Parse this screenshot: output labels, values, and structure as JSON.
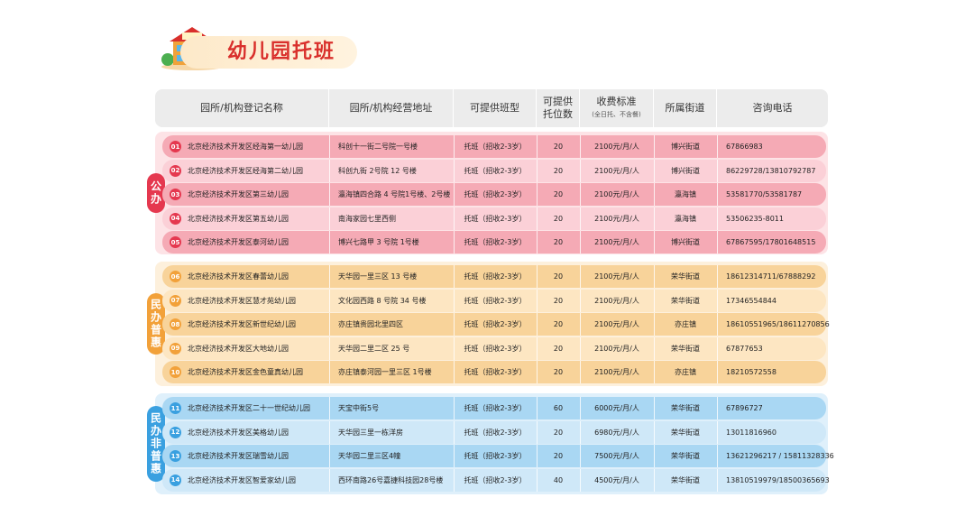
{
  "header": {
    "title": "幼儿园托班"
  },
  "table": {
    "columns": [
      "园所/机构登记名称",
      "园所/机构经营地址",
      "可提供班型",
      "可提供托位数",
      "收费标准",
      "所属街道",
      "咨询电话"
    ],
    "fee_note": "(全日托、不含餐)",
    "groups": [
      {
        "label": "公办",
        "rows": [
          [
            "01",
            "北京经济技术开发区经海第一幼儿园",
            "科创十一街二号院一号楼",
            "托班（招收2-3岁）",
            20,
            "2100元/月/人",
            "博兴街道",
            "67866983"
          ],
          [
            "02",
            "北京经济技术开发区经海第二幼儿园",
            "科创九街 2号院 12 号楼",
            "托班（招收2-3岁）",
            20,
            "2100元/月/人",
            "博兴街道",
            "86229728/13810792787"
          ],
          [
            "03",
            "北京经济技术开发区第三幼儿园",
            "瀛海镇四合路 4 号院1号楼、2号楼",
            "托班（招收2-3岁）",
            20,
            "2100元/月/人",
            "瀛海镇",
            "53581770/53581787"
          ],
          [
            "04",
            "北京经济技术开发区第五幼儿园",
            "南海家园七里西侧",
            "托班（招收2-3岁）",
            20,
            "2100元/月/人",
            "瀛海镇",
            "53506235-8011"
          ],
          [
            "05",
            "北京经济技术开发区泰河幼儿园",
            "博兴七路甲 3 号院 1号楼",
            "托班（招收2-3岁）",
            20,
            "2100元/月/人",
            "博兴街道",
            "67867595/17801648515"
          ]
        ]
      },
      {
        "label": "民办普惠",
        "rows": [
          [
            "06",
            "北京经济技术开发区春蕾幼儿园",
            "天华园一里三区 13 号楼",
            "托班（招收2-3岁）",
            20,
            "2100元/月/人",
            "荣华街道",
            "18612314711/67888292"
          ],
          [
            "07",
            "北京经济技术开发区慧才苑幼儿园",
            "文化园西路 8 号院 34 号楼",
            "托班（招收2-3岁）",
            20,
            "2100元/月/人",
            "荣华街道",
            "17346554844"
          ],
          [
            "08",
            "北京经济技术开发区新世纪幼儿园",
            "亦庄镇贵园北里四区",
            "托班（招收2-3岁）",
            20,
            "2100元/月/人",
            "亦庄镇",
            "18610551965/18611270856"
          ],
          [
            "09",
            "北京经济技术开发区大地幼儿园",
            "天华园二里二区 25 号",
            "托班（招收2-3岁）",
            20,
            "2100元/月/人",
            "荣华街道",
            "67877653"
          ],
          [
            "10",
            "北京经济技术开发区金色童真幼儿园",
            "亦庄镇泰河园一里三区 1号楼",
            "托班（招收2-3岁）",
            20,
            "2100元/月/人",
            "亦庄镇",
            "18210572558"
          ]
        ]
      },
      {
        "label": "民办非普惠",
        "rows": [
          [
            "11",
            "北京经济技术开发区二十一世纪幼儿园",
            "天宝中街5号",
            "托班（招收2-3岁）",
            60,
            "6000元/月/人",
            "荣华街道",
            "67896727"
          ],
          [
            "12",
            "北京经济技术开发区美格幼儿园",
            "天华园三里一栋洋房",
            "托班（招收2-3岁）",
            20,
            "6980元/月/人",
            "荣华街道",
            "13011816960"
          ],
          [
            "13",
            "北京经济技术开发区瑞雪幼儿园",
            "天华园二里三区4幢",
            "托班（招收2-3岁）",
            20,
            "7500元/月/人",
            "荣华街道",
            "13621296217 / 15811328336"
          ],
          [
            "14",
            "北京经济技术开发区智爱家幼儿园",
            "西环南路26号嘉捷科技园28号楼",
            "托班（招收2-3岁）",
            40,
            "4500元/月/人",
            "荣华街道",
            "13810519979/18500365693"
          ]
        ]
      }
    ]
  }
}
